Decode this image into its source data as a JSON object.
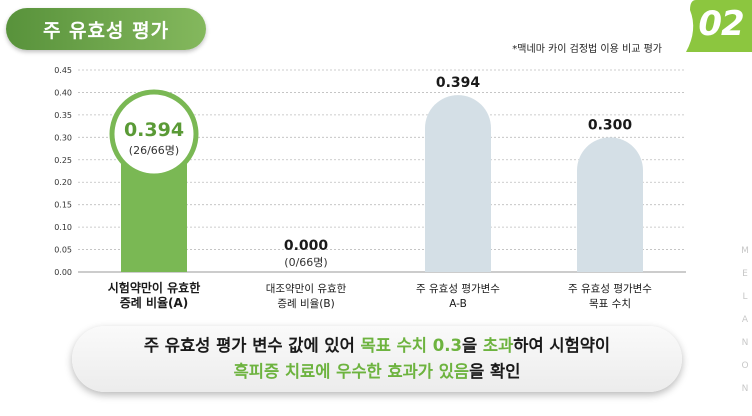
{
  "header": {
    "title": "주 유효성 평가",
    "badge": "02",
    "note": "*맥네마 카이 검정법 이용 비교 평가"
  },
  "side_text": [
    "M",
    "E",
    "L",
    "A",
    "N",
    "O",
    "N"
  ],
  "colors": {
    "accent_green": "#6db33f",
    "bar_green": "#7ab854",
    "bar_grey": "#d4dfe6",
    "badge_green": "#8cc63f"
  },
  "chart_data": {
    "type": "bar",
    "title": "",
    "xlabel": "",
    "ylabel": "",
    "ylim": [
      0,
      0.45
    ],
    "yticks": [
      "0.00",
      "0.05",
      "0.10",
      "0.15",
      "0.20",
      "0.25",
      "0.30",
      "0.35",
      "0.40",
      "0.45"
    ],
    "grid": true,
    "categories": [
      [
        "시험약만이 유효한",
        "증례 비율(A)"
      ],
      [
        "대조약만이 유효한",
        "증례 비율(B)"
      ],
      [
        "주 유효성 평가변수",
        "A-B"
      ],
      [
        "주 유효성 평가변수",
        "목표 수치"
      ]
    ],
    "values": [
      0.394,
      0.0,
      0.394,
      0.3
    ],
    "value_labels": [
      "0.394",
      "0.000",
      "0.394",
      "0.300"
    ],
    "sub_labels": [
      "(26/66명)",
      "(0/66명)",
      "",
      ""
    ],
    "bar_styles": [
      "green",
      "none",
      "grey",
      "grey"
    ],
    "highlight_index": 0
  },
  "conclusion": {
    "line1": [
      {
        "text": "주 유효성 평가 변수 값에 있어 ",
        "hl": false
      },
      {
        "text": "목표 수치 0.3",
        "hl": true
      },
      {
        "text": "을 ",
        "hl": false
      },
      {
        "text": "초과",
        "hl": true
      },
      {
        "text": "하여 시험약이",
        "hl": false
      }
    ],
    "line2": [
      {
        "text": "흑피증 치료에 우수한 효과가 있음",
        "hl": true
      },
      {
        "text": "을 확인",
        "hl": false
      }
    ]
  }
}
